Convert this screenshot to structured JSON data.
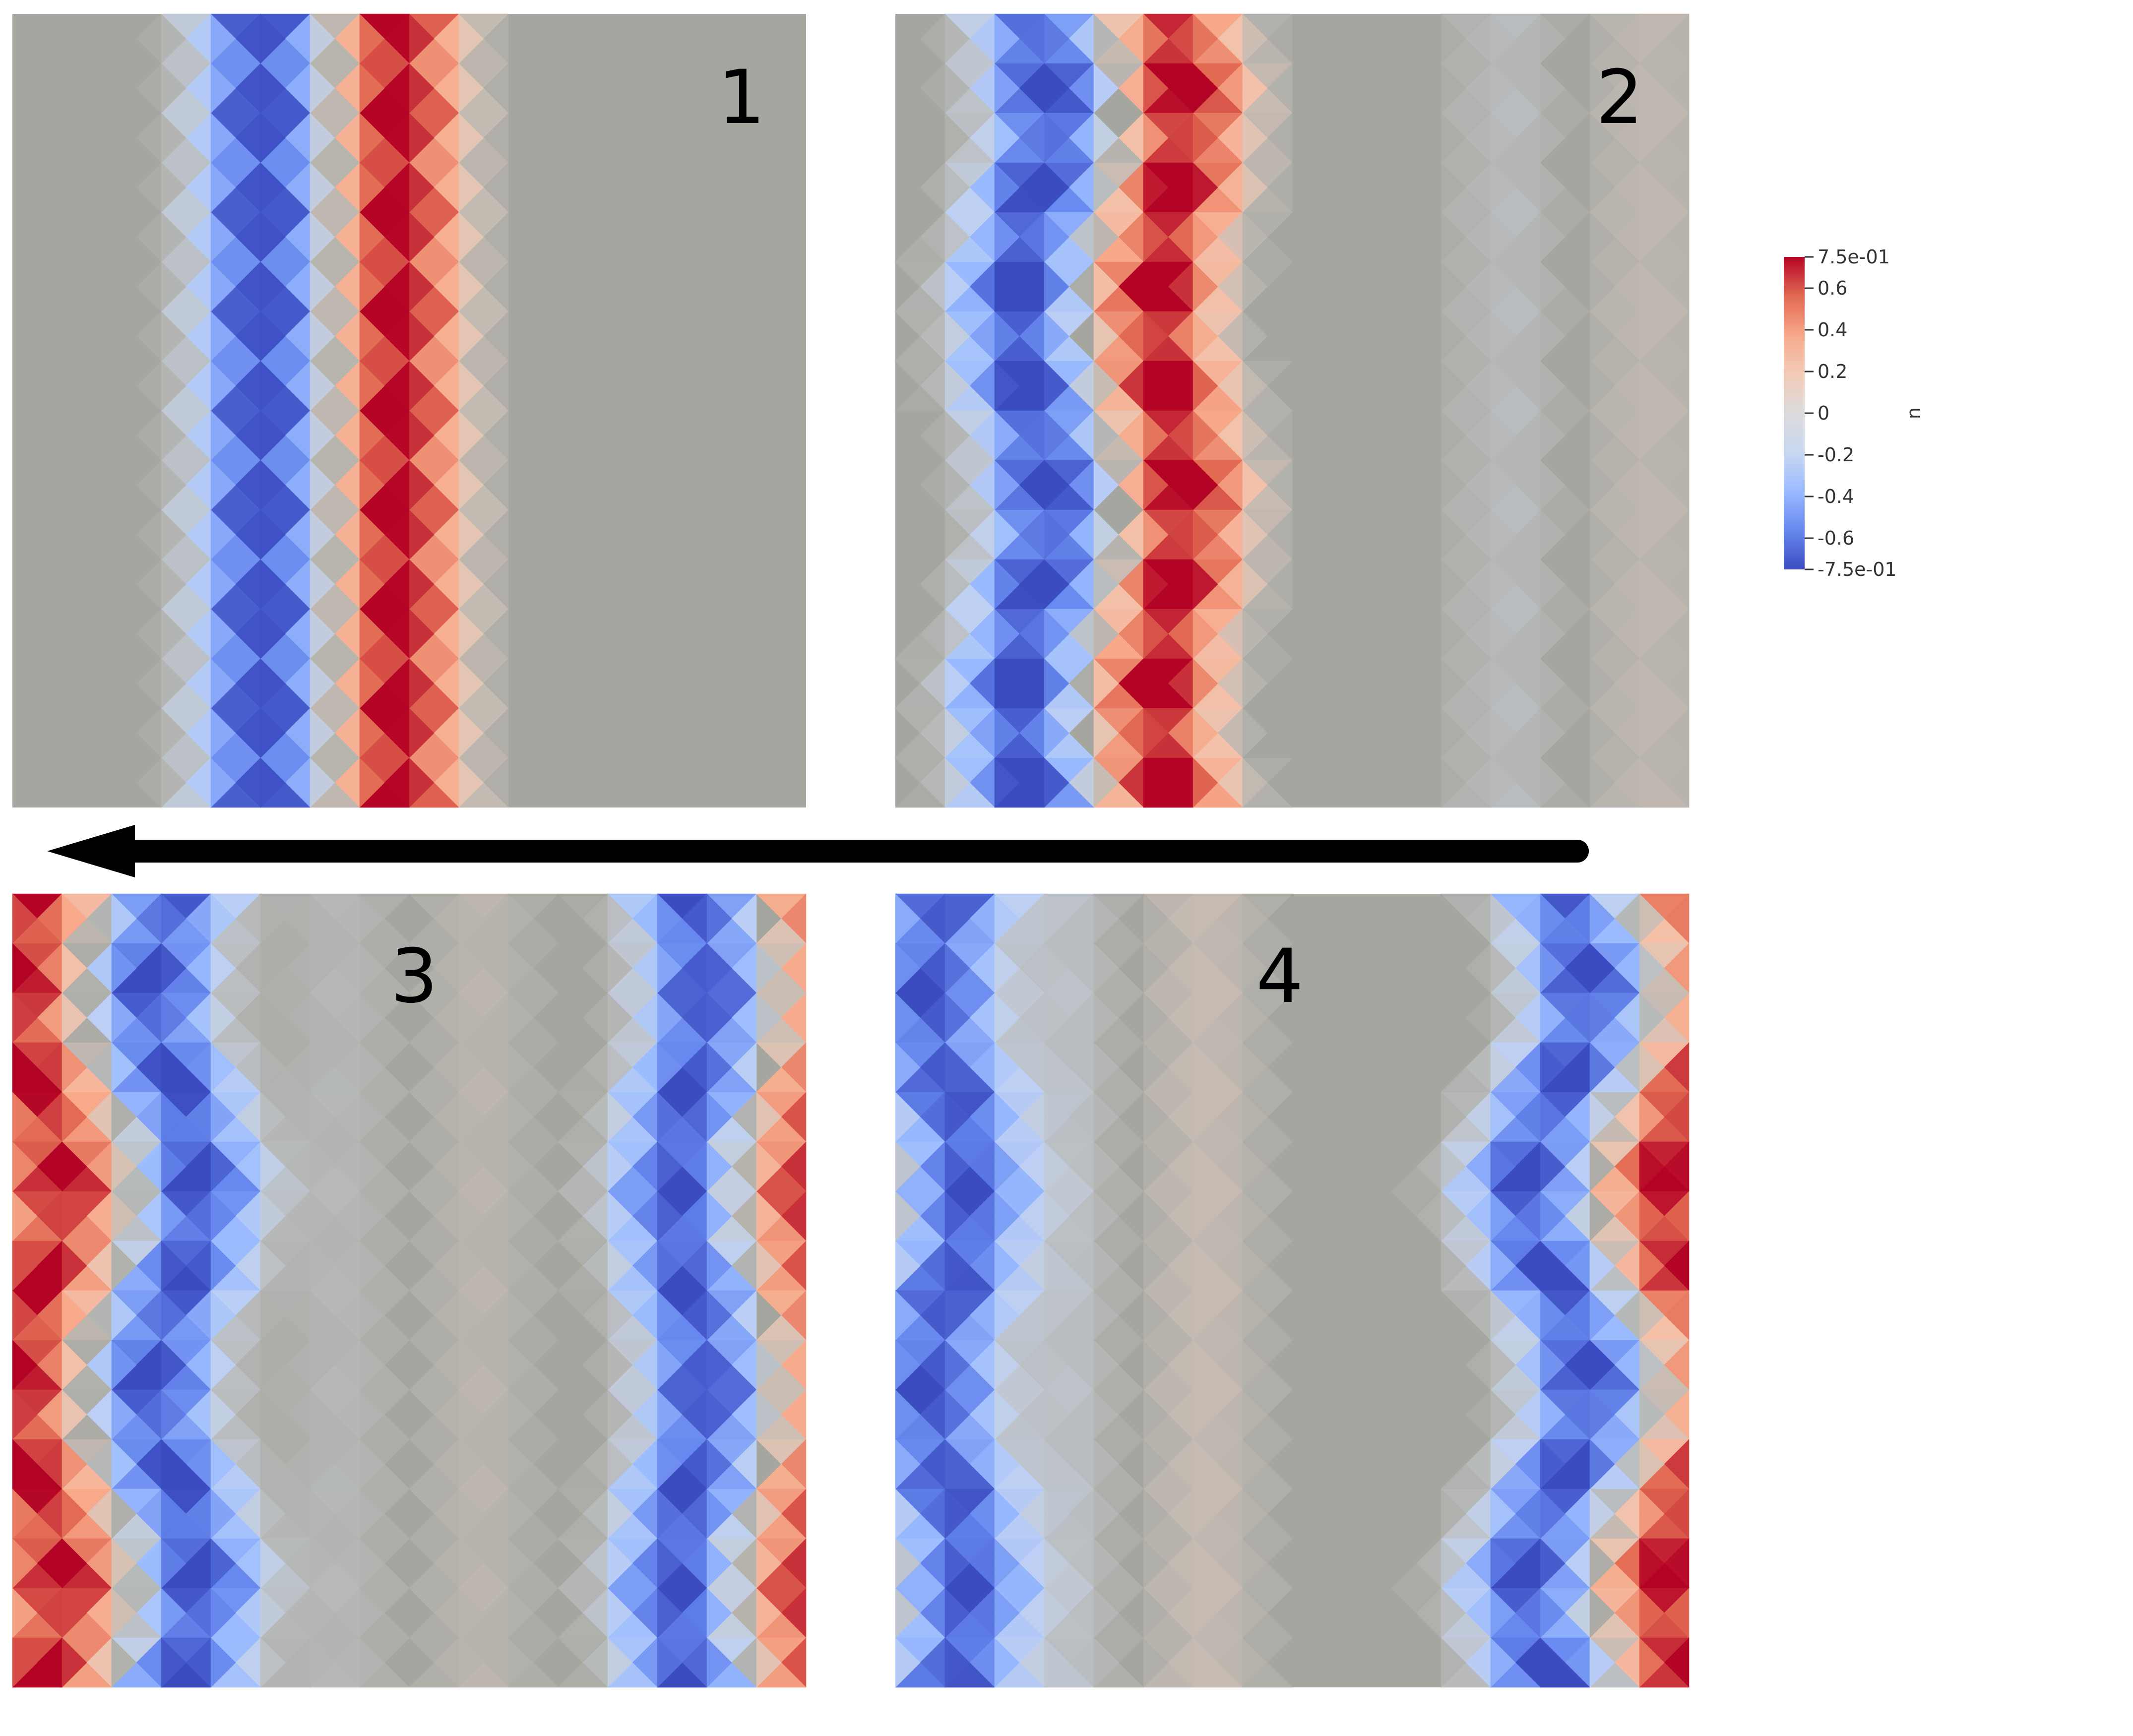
{
  "colors": {
    "background": "#ffffff",
    "domain": "#a6a6a0",
    "arrow": "#000000",
    "colormap_stops": [
      "#3b4cc0",
      "#6788ee",
      "#9abbff",
      "#c9d7f0",
      "#dddcdc",
      "#f2cbb7",
      "#f7a889",
      "#e26952",
      "#b40426"
    ]
  },
  "panels": [
    {
      "label": "1",
      "waves": [
        {
          "center": 0.4,
          "amp": 1.0,
          "phase": 0.0,
          "skew": 0.0
        }
      ]
    },
    {
      "label": "2",
      "waves": [
        {
          "center": 0.26,
          "amp": 1.0,
          "phase": 0.5,
          "skew": 0.02
        },
        {
          "center": 0.86,
          "amp": 0.12,
          "phase": 0.0,
          "skew": 0.0
        }
      ]
    },
    {
      "label": "3",
      "waves": [
        {
          "center": 0.12,
          "amp": -0.95,
          "phase": 0.2,
          "skew": -0.03
        },
        {
          "center": 0.94,
          "amp": 0.95,
          "phase": 0.0,
          "skew": 0.02
        },
        {
          "center": 0.5,
          "amp": 0.1,
          "phase": 0.0,
          "skew": 0.0
        }
      ]
    },
    {
      "label": "4",
      "waves": [
        {
          "center": 0.92,
          "amp": 0.95,
          "phase": 0.3,
          "skew": 0.04
        },
        {
          "center": -0.02,
          "amp": -0.95,
          "phase": 0.0,
          "skew": -0.02
        },
        {
          "center": 0.3,
          "amp": 0.15,
          "phase": 0.0,
          "skew": 0.0
        }
      ]
    }
  ],
  "colorbar": {
    "title": "u",
    "min": -0.75,
    "max": 0.75,
    "ticks": [
      {
        "value": 0.75,
        "label": "7.5e-01"
      },
      {
        "value": 0.6,
        "label": "0.6"
      },
      {
        "value": 0.4,
        "label": "0.4"
      },
      {
        "value": 0.2,
        "label": "0.2"
      },
      {
        "value": 0.0,
        "label": "0"
      },
      {
        "value": -0.2,
        "label": "-0.2"
      },
      {
        "value": -0.4,
        "label": "-0.4"
      },
      {
        "value": -0.6,
        "label": "-0.6"
      },
      {
        "value": -0.75,
        "label": "-7.5e-01"
      }
    ]
  },
  "arrow": {
    "direction": "left"
  }
}
